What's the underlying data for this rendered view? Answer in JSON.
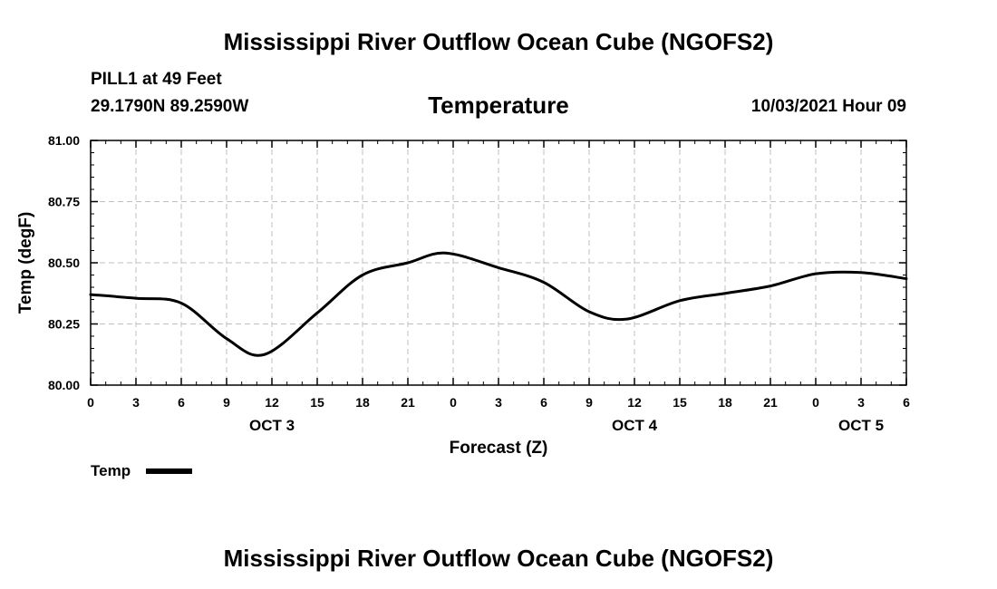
{
  "page": {
    "title_top": "Mississippi River Outflow Ocean Cube (NGOFS2)",
    "title_bottom": "Mississippi River Outflow Ocean Cube (NGOFS2)",
    "station": "PILL1 at 49 Feet",
    "coords": "29.1790N  89.2590W",
    "variable": "Temperature",
    "datetime": "10/03/2021 Hour 09"
  },
  "chart_data": {
    "type": "line",
    "title": "Temperature",
    "xlabel": "Forecast (Z)",
    "ylabel": "Temp (degF)",
    "xlim": [
      0,
      54
    ],
    "ylim": [
      80.0,
      81.0
    ],
    "grid": true,
    "x_tick_values": [
      0,
      3,
      6,
      9,
      12,
      15,
      18,
      21,
      24,
      27,
      30,
      33,
      36,
      39,
      42,
      45,
      48,
      51,
      54
    ],
    "x_tick_labels": [
      "0",
      "3",
      "6",
      "9",
      "12",
      "15",
      "18",
      "21",
      "0",
      "3",
      "6",
      "9",
      "12",
      "15",
      "18",
      "21",
      "0",
      "3",
      "6"
    ],
    "y_tick_values": [
      80.0,
      80.25,
      80.5,
      80.75,
      81.0
    ],
    "y_tick_labels": [
      "80.00",
      "80.25",
      "80.50",
      "80.75",
      "81.00"
    ],
    "date_labels": [
      {
        "x": 12,
        "label": "OCT 3"
      },
      {
        "x": 36,
        "label": "OCT 4"
      },
      {
        "x": 51,
        "label": "OCT 5"
      }
    ],
    "legend": {
      "position": "bottom-left",
      "label": "Temp"
    },
    "series": [
      {
        "name": "Temp",
        "color": "#000000",
        "x": [
          0,
          3,
          6,
          9,
          11.5,
          15,
          18,
          21,
          23.5,
          27,
          30,
          33,
          35.5,
          39,
          42,
          45,
          48,
          51,
          54
        ],
        "y": [
          80.37,
          80.355,
          80.335,
          80.19,
          80.125,
          80.295,
          80.45,
          80.5,
          80.54,
          80.48,
          80.42,
          80.3,
          80.27,
          80.345,
          80.375,
          80.405,
          80.455,
          80.46,
          80.435
        ]
      }
    ]
  }
}
